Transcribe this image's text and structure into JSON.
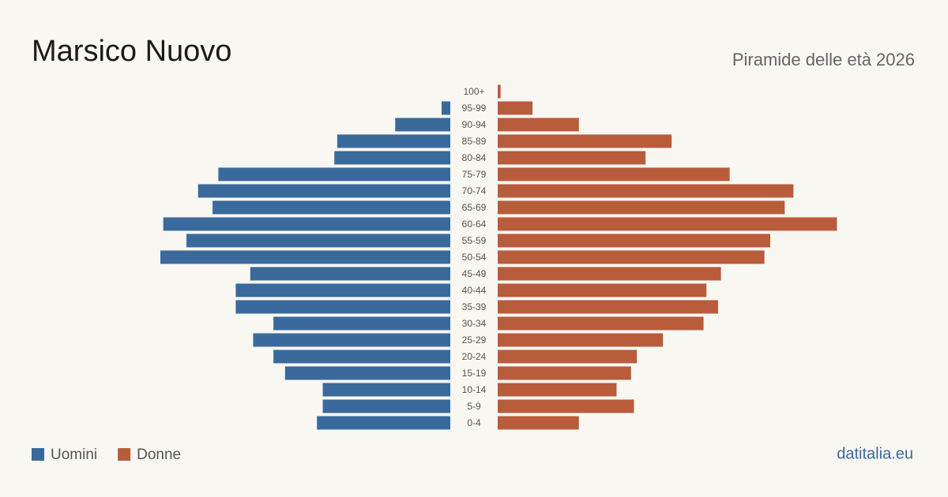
{
  "chart_data": {
    "type": "pyramid",
    "title": "Marsico Nuovo",
    "subtitle": "Piramide delle età 2026",
    "source": "datitalia.eu",
    "categories": [
      "100+",
      "95-99",
      "90-94",
      "85-89",
      "80-84",
      "75-79",
      "70-74",
      "65-69",
      "60-64",
      "55-59",
      "50-54",
      "45-49",
      "40-44",
      "35-39",
      "30-34",
      "25-29",
      "20-24",
      "15-19",
      "10-14",
      "5-9",
      "0-4"
    ],
    "series": [
      {
        "name": "Uomini",
        "color": "#3a6a9c",
        "values": [
          0,
          3,
          19,
          39,
          40,
          80,
          87,
          82,
          99,
          91,
          100,
          69,
          74,
          74,
          61,
          68,
          61,
          57,
          44,
          44,
          46
        ]
      },
      {
        "name": "Donne",
        "color": "#b85c3c",
        "values": [
          1,
          12,
          28,
          60,
          51,
          80,
          102,
          99,
          117,
          94,
          92,
          77,
          72,
          76,
          71,
          57,
          48,
          46,
          41,
          47,
          28
        ]
      }
    ]
  }
}
